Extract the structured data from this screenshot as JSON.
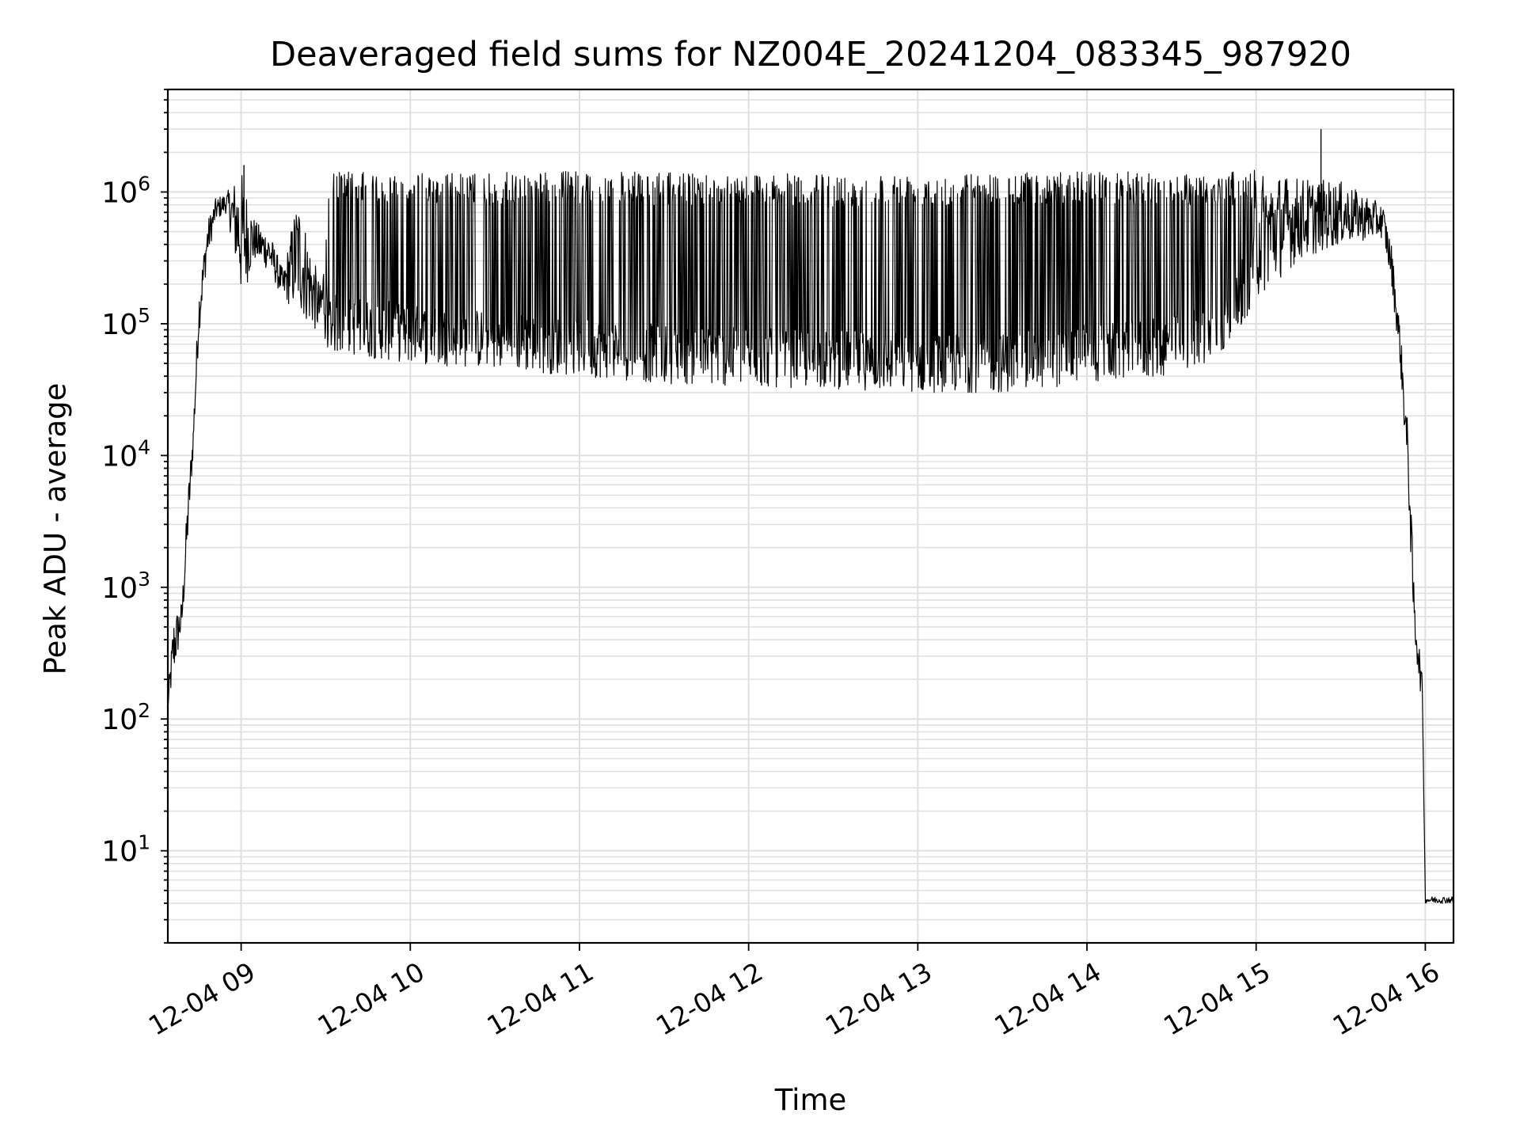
{
  "chart_data": {
    "type": "line",
    "title": "Deaveraged field sums for NZ004E_20241204_083345_987920",
    "xlabel": "Time",
    "ylabel": "Peak ADU - average",
    "x_scale": "time",
    "y_scale": "log",
    "xlim": [
      "2024-12-04 08:34",
      "2024-12-04 16:10"
    ],
    "ylim": [
      2,
      6000000
    ],
    "grid": true,
    "x_ticks": [
      {
        "t": "2024-12-04 09:00",
        "label": "12-04 09"
      },
      {
        "t": "2024-12-04 10:00",
        "label": "12-04 10"
      },
      {
        "t": "2024-12-04 11:00",
        "label": "12-04 11"
      },
      {
        "t": "2024-12-04 12:00",
        "label": "12-04 12"
      },
      {
        "t": "2024-12-04 13:00",
        "label": "12-04 13"
      },
      {
        "t": "2024-12-04 14:00",
        "label": "12-04 14"
      },
      {
        "t": "2024-12-04 15:00",
        "label": "12-04 15"
      },
      {
        "t": "2024-12-04 16:00",
        "label": "12-04 16"
      }
    ],
    "y_ticks": [
      {
        "v": 10,
        "mantissa": "10",
        "exp": "1"
      },
      {
        "v": 100,
        "mantissa": "10",
        "exp": "2"
      },
      {
        "v": 1000,
        "mantissa": "10",
        "exp": "3"
      },
      {
        "v": 10000,
        "mantissa": "10",
        "exp": "4"
      },
      {
        "v": 100000,
        "mantissa": "10",
        "exp": "5"
      },
      {
        "v": 1000000,
        "mantissa": "10",
        "exp": "6"
      }
    ],
    "series": [
      {
        "color": "#000000",
        "envelope": [
          {
            "t": "2024-12-04 08:34",
            "low": 110,
            "high": 150
          },
          {
            "t": "2024-12-04 08:36",
            "low": 200,
            "high": 600
          },
          {
            "t": "2024-12-04 08:39",
            "low": 450,
            "high": 800
          },
          {
            "t": "2024-12-04 08:41",
            "low": 2000,
            "high": 5000
          },
          {
            "t": "2024-12-04 08:43",
            "low": 10000,
            "high": 18000
          },
          {
            "t": "2024-12-04 08:45",
            "low": 80000,
            "high": 180000
          },
          {
            "t": "2024-12-04 08:48",
            "low": 300000,
            "high": 600000
          },
          {
            "t": "2024-12-04 08:51",
            "low": 600000,
            "high": 900000
          },
          {
            "t": "2024-12-04 08:55",
            "low": 700000,
            "high": 1000000
          },
          {
            "t": "2024-12-04 09:00",
            "low": 150000,
            "high": 1500000
          },
          {
            "t": "2024-12-04 09:05",
            "low": 300000,
            "high": 600000
          },
          {
            "t": "2024-12-04 09:10",
            "low": 250000,
            "high": 500000
          },
          {
            "t": "2024-12-04 09:15",
            "low": 150000,
            "high": 250000
          },
          {
            "t": "2024-12-04 09:20",
            "low": 120000,
            "high": 1000000
          },
          {
            "t": "2024-12-04 09:28",
            "low": 80000,
            "high": 200000
          },
          {
            "t": "2024-12-04 09:32",
            "low": 60000,
            "high": 1500000
          },
          {
            "t": "2024-12-04 09:45",
            "low": 55000,
            "high": 1400000
          },
          {
            "t": "2024-12-04 10:00",
            "low": 50000,
            "high": 1400000
          },
          {
            "t": "2024-12-04 10:30",
            "low": 45000,
            "high": 1400000
          },
          {
            "t": "2024-12-04 11:00",
            "low": 40000,
            "high": 1450000
          },
          {
            "t": "2024-12-04 11:30",
            "low": 35000,
            "high": 1400000
          },
          {
            "t": "2024-12-04 12:00",
            "low": 33000,
            "high": 1400000
          },
          {
            "t": "2024-12-04 12:30",
            "low": 32000,
            "high": 1350000
          },
          {
            "t": "2024-12-04 13:00",
            "low": 30000,
            "high": 1400000
          },
          {
            "t": "2024-12-04 13:30",
            "low": 30000,
            "high": 1400000
          },
          {
            "t": "2024-12-04 14:00",
            "low": 35000,
            "high": 1450000
          },
          {
            "t": "2024-12-04 14:30",
            "low": 40000,
            "high": 1400000
          },
          {
            "t": "2024-12-04 14:50",
            "low": 60000,
            "high": 1400000
          },
          {
            "t": "2024-12-04 15:00",
            "low": 150000,
            "high": 1500000
          },
          {
            "t": "2024-12-04 15:15",
            "low": 300000,
            "high": 1300000
          },
          {
            "t": "2024-12-04 15:30",
            "low": 400000,
            "high": 1200000
          },
          {
            "t": "2024-12-04 15:45",
            "low": 450000,
            "high": 800000
          },
          {
            "t": "2024-12-04 15:48",
            "low": 200000,
            "high": 400000
          },
          {
            "t": "2024-12-04 15:51",
            "low": 50000,
            "high": 100000
          },
          {
            "t": "2024-12-04 15:54",
            "low": 5000,
            "high": 15000
          },
          {
            "t": "2024-12-04 15:56",
            "low": 400,
            "high": 1000
          },
          {
            "t": "2024-12-04 15:59",
            "low": 120,
            "high": 200
          },
          {
            "t": "2024-12-04 16:00",
            "low": 4,
            "high": 4.5
          },
          {
            "t": "2024-12-04 16:10",
            "low": 4,
            "high": 4.5
          }
        ],
        "spikes": [
          {
            "t": "2024-12-04 15:23",
            "value": 3000000
          },
          {
            "t": "2024-12-04 09:01",
            "value": 1600000
          }
        ]
      }
    ]
  }
}
